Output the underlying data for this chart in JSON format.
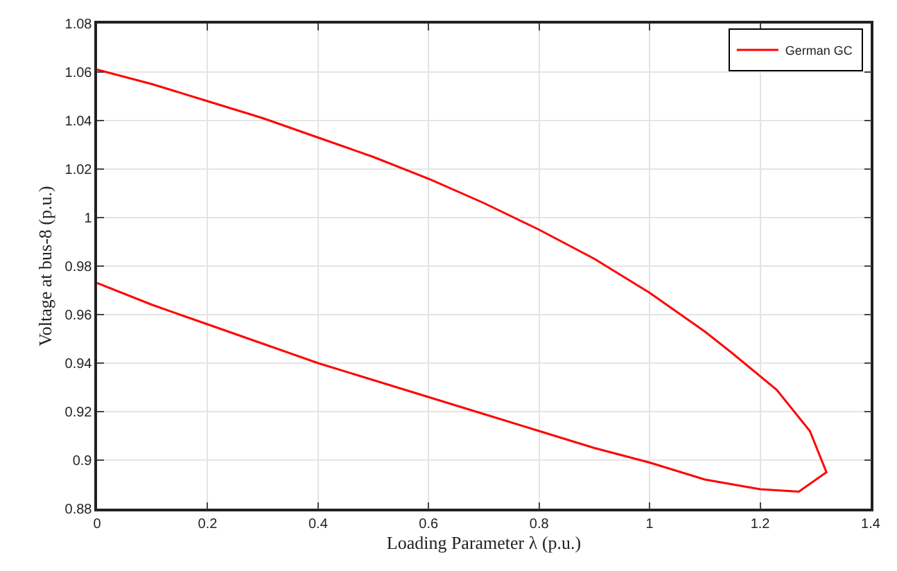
{
  "chart_data": {
    "type": "line",
    "xlabel": "Loading Parameter λ (p.u.)",
    "ylabel": "Voltage at bus-8 (p.u.)",
    "x": [
      0,
      0.1,
      0.2,
      0.3,
      0.4,
      0.5,
      0.6,
      0.7,
      0.8,
      0.9,
      1.0,
      1.1,
      1.15,
      1.23,
      1.29,
      1.32,
      1.27,
      1.2,
      1.1,
      1.0,
      0.9,
      0.8,
      0.7,
      0.6,
      0.5,
      0.4,
      0.3,
      0.2,
      0.1,
      0
    ],
    "series": [
      {
        "name": "German GC",
        "color": "#ff0000",
        "values": [
          1.061,
          1.055,
          1.048,
          1.041,
          1.033,
          1.025,
          1.016,
          1.006,
          0.995,
          0.983,
          0.969,
          0.953,
          0.944,
          0.929,
          0.912,
          0.895,
          0.887,
          0.888,
          0.892,
          0.899,
          0.905,
          0.912,
          0.919,
          0.926,
          0.933,
          0.94,
          0.948,
          0.956,
          0.964,
          0.973
        ]
      }
    ],
    "xlim": [
      0,
      1.4
    ],
    "xticks": [
      0,
      0.2,
      0.4,
      0.6,
      0.8,
      1,
      1.2,
      1.4
    ],
    "ylim": [
      0.88,
      1.08
    ],
    "yticks": [
      0.88,
      0.9,
      0.92,
      0.94,
      0.96,
      0.98,
      1,
      1.02,
      1.04,
      1.06,
      1.08
    ],
    "grid": true,
    "legend": "top right",
    "marker": "none",
    "line_style": "solid"
  }
}
